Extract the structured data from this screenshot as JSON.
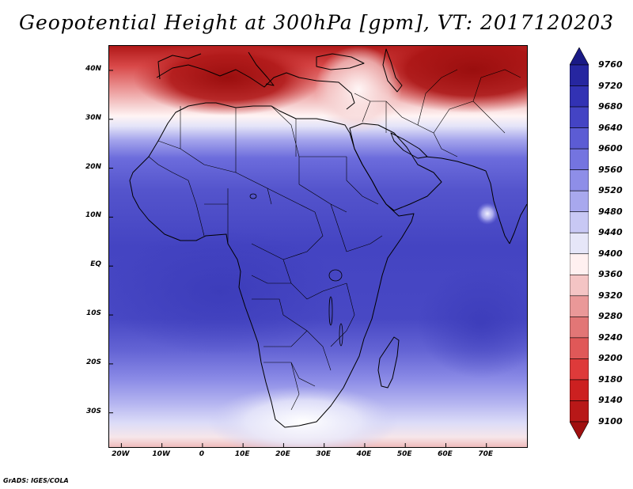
{
  "title": "Geopotential Height at 300hPa [gpm], VT: 2017120203",
  "credit": "GrADS: IGES/COLA",
  "map": {
    "lon_range": [
      -23,
      80
    ],
    "lat_range": [
      -37,
      45
    ],
    "lat_ticks": [
      {
        "value": 40,
        "label": "40N"
      },
      {
        "value": 30,
        "label": "30N"
      },
      {
        "value": 20,
        "label": "20N"
      },
      {
        "value": 10,
        "label": "10N"
      },
      {
        "value": 0,
        "label": "EQ"
      },
      {
        "value": -10,
        "label": "10S"
      },
      {
        "value": -20,
        "label": "20S"
      },
      {
        "value": -30,
        "label": "30S"
      }
    ],
    "lon_ticks": [
      {
        "value": -20,
        "label": "20W"
      },
      {
        "value": -10,
        "label": "10W"
      },
      {
        "value": 0,
        "label": "0"
      },
      {
        "value": 10,
        "label": "10E"
      },
      {
        "value": 20,
        "label": "20E"
      },
      {
        "value": 30,
        "label": "30E"
      },
      {
        "value": 40,
        "label": "40E"
      },
      {
        "value": 50,
        "label": "50E"
      },
      {
        "value": 60,
        "label": "60E"
      },
      {
        "value": 70,
        "label": "70E"
      }
    ]
  },
  "colorbar": {
    "levels": [
      9100,
      9140,
      9180,
      9200,
      9240,
      9280,
      9320,
      9360,
      9400,
      9440,
      9480,
      9520,
      9560,
      9600,
      9640,
      9680,
      9720,
      9760
    ],
    "colors": [
      "#a01010",
      "#b81818",
      "#cc2020",
      "#de3a3a",
      "#e05858",
      "#e27676",
      "#ea9898",
      "#f4c4c4",
      "#fff0f0",
      "#e6e6f8",
      "#c8c8f4",
      "#a8a8ee",
      "#8e8ee8",
      "#7474e0",
      "#5c5cd4",
      "#4444c4",
      "#3232b4",
      "#2626a0",
      "#1a1a86"
    ]
  }
}
